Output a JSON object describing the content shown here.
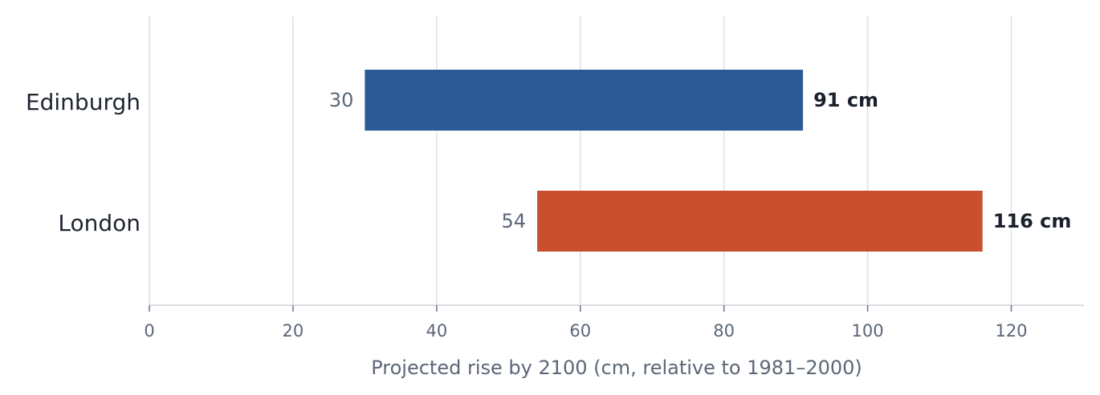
{
  "chart_data": {
    "type": "bar",
    "orientation": "horizontal",
    "categories": [
      "Edinburgh",
      "London"
    ],
    "ranges": [
      {
        "category": "Edinburgh",
        "start": 30,
        "end": 91,
        "start_label": "30",
        "end_label": "91 cm",
        "color": "#2c5a96"
      },
      {
        "category": "London",
        "start": 54,
        "end": 116,
        "start_label": "54",
        "end_label": "116 cm",
        "color": "#c8502e"
      }
    ],
    "xlabel": "Projected rise by 2100 (cm, relative to 1981–2000)",
    "ylabel": "",
    "xlim": [
      0,
      130
    ],
    "x_ticks": [
      0,
      20,
      40,
      60,
      80,
      100,
      120
    ],
    "x_tick_labels": [
      "0",
      "20",
      "40",
      "60",
      "80",
      "100",
      "120"
    ],
    "grid": "vertical",
    "legend": "none"
  }
}
